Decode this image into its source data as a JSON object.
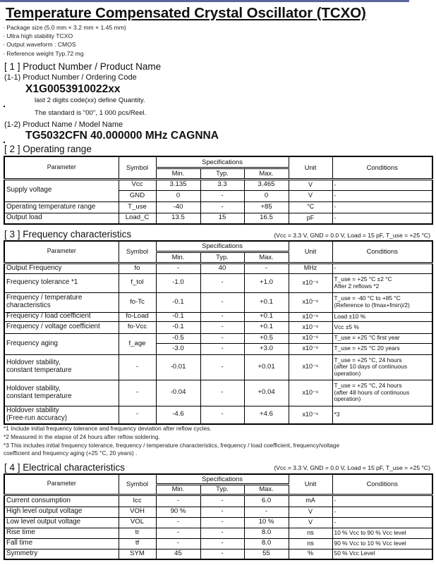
{
  "title": "Temperature Compensated Crystal Oscillator (TCXO)",
  "features": [
    "· Package size (5.0 mm × 3.2 mm × 1.45 mm)",
    "· Ultra high stability TCXO",
    "· Output waveform : CMOS",
    "· Reference weight Typ.72 mg"
  ],
  "section1": {
    "heading": "[ 1 ] Product Number / Product Name",
    "sub1": "(1-1) Product Number / Ordering Code",
    "product_number": "X1G0053910022xx",
    "note1": "last 2 digits code(xx) define Quantity.",
    "note2": "The standard is \"00\", 1 000 pcs/Reel.",
    "sub2": "(1-2)  Product Name / Model Name",
    "product_name": "TG5032CFN 40.000000 MHz CAGNNA"
  },
  "header_labels": {
    "parameter": "Parameter",
    "symbol": "Symbol",
    "specifications": "Specifications",
    "min": "Min.",
    "typ": "Typ.",
    "max": "Max.",
    "unit": "Unit",
    "conditions": "Conditions"
  },
  "section2": {
    "heading": "[ 2 ] Operating range",
    "rows": [
      {
        "param": "Supply voltage",
        "span": 2,
        "symbol": "Vcc",
        "min": "3.135",
        "typ": "3.3",
        "max": "3.465",
        "unit": "V",
        "cond": "-"
      },
      {
        "symbol": "GND",
        "min": "0",
        "typ": "-",
        "max": "0",
        "unit": "V",
        "cond": "-"
      },
      {
        "param": "Operating temperature range",
        "symbol": "T_use",
        "min": "-40",
        "typ": "-",
        "max": "+85",
        "unit": "°C",
        "cond": "-"
      },
      {
        "param": "Output load",
        "symbol": "Load_C",
        "min": "13.5",
        "typ": "15",
        "max": "16.5",
        "unit": "pF",
        "cond": "-"
      }
    ]
  },
  "section3": {
    "heading": "[ 3 ] Frequency characteristics",
    "conditions_note": "(Vcc = 3.3 V, GND = 0.0 V, Load = 15 pF, T_use = +25 °C)",
    "rows": [
      {
        "param": "Output Frequency",
        "symbol": "fo",
        "min": "-",
        "typ": "40",
        "max": "-",
        "unit": "MHz",
        "cond": "-"
      },
      {
        "param": "Frequency tolerance *1",
        "symbol": "f_tol",
        "min": "-1.0",
        "typ": "-",
        "max": "+1.0",
        "unit": "x10⁻⁶",
        "cond": "T_use = +25 °C ±2 °C\nAfter 2 reflows *2"
      },
      {
        "param": "Frequency / temperature\ncharacteristics",
        "symbol": "fo-Tc",
        "min": "-0.1",
        "typ": "-",
        "max": "+0.1",
        "unit": "x10⁻⁶",
        "cond": "T_use = -40 °C to +85 °C\n (Reference to (fmax+fmin)/2)"
      },
      {
        "param": "Frequency / load coefficient",
        "symbol": "fo-Load",
        "min": "-0.1",
        "typ": "-",
        "max": "+0.1",
        "unit": "x10⁻⁶",
        "cond": "Load ±10 %"
      },
      {
        "param": "Frequency / voltage coefficient",
        "symbol": "fo-Vcc",
        "min": "-0.1",
        "typ": "-",
        "max": "+0.1",
        "unit": "x10⁻⁶",
        "cond": "Vcc ±5 %"
      },
      {
        "param": "Frequency aging",
        "span": 2,
        "symbol": "f_age",
        "symspan": 2,
        "min": "-0.5",
        "typ": "-",
        "max": "+0.5",
        "unit": "x10⁻⁶",
        "cond": "T_use = +25 °C  first year"
      },
      {
        "min": "-3.0",
        "typ": "-",
        "max": "+3.0",
        "unit": "x10⁻⁶",
        "cond": "T_use = +25 °C  20 years"
      },
      {
        "param": "Holdover stability,\nconstant temperature",
        "symbol": "-",
        "min": "-0.01",
        "typ": "-",
        "max": "+0.01",
        "unit": "x10⁻⁶",
        "cond": "T_use = +25 °C, 24 hours\n(after 10 days of continuous\noperation)"
      },
      {
        "param": "Holdover stability,\nconstant temperature",
        "symbol": "-",
        "min": "-0.04",
        "typ": "-",
        "max": "+0.04",
        "unit": "x10⁻⁶",
        "cond": "T_use = +25 °C, 24 hours\n(after 48 hours of continuous\noperation)"
      },
      {
        "param": "Holdover stability\n(Free-run accuracy)",
        "symbol": "-",
        "min": "-4.6",
        "typ": "-",
        "max": "+4.6",
        "unit": "x10⁻⁶",
        "cond": "*3"
      }
    ],
    "footnotes": [
      "*1 Include initial frequency tolerance and frequency deviation after reflow cycles.",
      "*2 Measured in the elapse of 24 hours after reflow soldering.",
      "*3 This includes initial frequency tolerance, frequency / temperature characteristics, frequency / load coefficient, frequency/voltage",
      "coefficient and frequency aging (+25 °C, 20 years) ."
    ]
  },
  "section4": {
    "heading": "[ 4 ] Electrical characteristics",
    "conditions_note": "(Vcc = 3.3 V, GND = 0.0 V, Load = 15 pF, T_use = +25 °C)",
    "rows": [
      {
        "param": "Current consumption",
        "symbol": "Icc",
        "min": "-",
        "typ": "-",
        "max": "6.0",
        "unit": "mA",
        "cond": "-"
      },
      {
        "param": "High level output voltage",
        "symbol": "VOH",
        "min": "90 %",
        "typ": "-",
        "max": "-",
        "unit": "V",
        "cond": "-"
      },
      {
        "param": "Low level output voltage",
        "symbol": "VOL",
        "min": "-",
        "typ": "-",
        "max": "10 %",
        "unit": "V",
        "cond": "-"
      },
      {
        "param": "Rise time",
        "symbol": "tr",
        "min": "-",
        "typ": "-",
        "max": "8.0",
        "unit": "ns",
        "cond": "10 % Vcc to 90 % Vcc level"
      },
      {
        "param": "Fall time",
        "symbol": "tf",
        "min": "-",
        "typ": "-",
        "max": "8.0",
        "unit": "ns",
        "cond": "90 % Vcc to 10 % Vcc level"
      },
      {
        "param": "Symmetry",
        "symbol": "SYM",
        "min": "45",
        "typ": "-",
        "max": "55",
        "unit": "%",
        "cond": "50 % Vcc Level"
      }
    ]
  }
}
